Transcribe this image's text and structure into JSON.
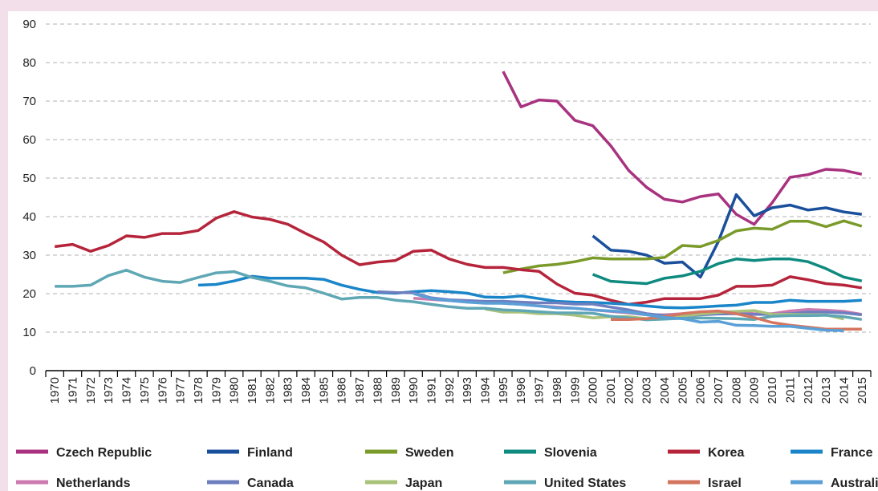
{
  "chart_data": {
    "type": "line",
    "categories": [
      "1970",
      "1971",
      "1972",
      "1973",
      "1974",
      "1975",
      "1976",
      "1977",
      "1978",
      "1979",
      "1980",
      "1981",
      "1982",
      "1983",
      "1984",
      "1985",
      "1986",
      "1987",
      "1988",
      "1989",
      "1990",
      "1991",
      "1992",
      "1993",
      "1994",
      "1995",
      "1996",
      "1997",
      "1998",
      "1999",
      "2000",
      "2001",
      "2002",
      "2003",
      "2004",
      "2005",
      "2006",
      "2007",
      "2008",
      "2009",
      "2010",
      "2011",
      "2012",
      "2013",
      "2014",
      "2015"
    ],
    "ylim": [
      0,
      90
    ],
    "yticks": [
      0,
      10,
      20,
      30,
      40,
      50,
      60,
      70,
      80,
      90
    ],
    "grid": true,
    "series": [
      {
        "name": "Czech Republic",
        "color": "#a8327f",
        "values": [
          null,
          null,
          null,
          null,
          null,
          null,
          null,
          null,
          null,
          null,
          null,
          null,
          null,
          null,
          null,
          null,
          null,
          null,
          null,
          null,
          null,
          null,
          null,
          null,
          null,
          77.7,
          68.5,
          70.3,
          70,
          65,
          63.6,
          58.4,
          52,
          47.6,
          44.5,
          43.8,
          45.2,
          45.9,
          40.6,
          38,
          43.6,
          50.2,
          50.9,
          52.3,
          52,
          51
        ]
      },
      {
        "name": "Finland",
        "color": "#1a4f9c",
        "values": [
          null,
          null,
          null,
          null,
          null,
          null,
          null,
          null,
          null,
          null,
          null,
          null,
          null,
          null,
          null,
          null,
          null,
          null,
          null,
          null,
          null,
          null,
          null,
          null,
          null,
          null,
          null,
          null,
          null,
          null,
          35,
          31.3,
          31,
          30,
          27.9,
          28.2,
          24.3,
          33.5,
          45.7,
          40.2,
          42.3,
          43,
          41.7,
          42.3,
          41.2,
          40.6
        ]
      },
      {
        "name": "Sweden",
        "color": "#7a9a2a",
        "values": [
          null,
          null,
          null,
          null,
          null,
          null,
          null,
          null,
          null,
          null,
          null,
          null,
          null,
          null,
          null,
          null,
          null,
          null,
          null,
          null,
          null,
          null,
          null,
          null,
          null,
          25.4,
          26.4,
          27.2,
          27.6,
          28.3,
          29.3,
          29,
          29,
          29,
          29.4,
          32.5,
          32.2,
          33.8,
          36.3,
          37,
          36.7,
          38.8,
          38.8,
          37.4,
          38.9,
          37.5
        ]
      },
      {
        "name": "Slovenia",
        "color": "#0e8a7f",
        "values": [
          null,
          null,
          null,
          null,
          null,
          null,
          null,
          null,
          null,
          null,
          null,
          null,
          null,
          null,
          null,
          null,
          null,
          null,
          null,
          null,
          null,
          null,
          null,
          null,
          null,
          null,
          null,
          null,
          null,
          null,
          25,
          23.2,
          22.9,
          22.6,
          24,
          24.6,
          25.8,
          27.8,
          29,
          28.6,
          29,
          29,
          28.3,
          26.5,
          24.3,
          23.3
        ]
      },
      {
        "name": "Korea",
        "color": "#b5243a",
        "values": [
          32.2,
          32.8,
          31,
          32.5,
          35,
          34.6,
          35.6,
          35.6,
          36.4,
          39.6,
          41.3,
          39.9,
          39.3,
          38,
          35.6,
          33.4,
          30,
          27.5,
          28.2,
          28.6,
          31,
          31.3,
          29,
          27.6,
          26.8,
          26.8,
          26.2,
          25.8,
          22.5,
          20.1,
          19.6,
          18.3,
          17.2,
          17.8,
          18.7,
          18.7,
          18.7,
          19.6,
          21.9,
          21.9,
          22.2,
          24.4,
          23.6,
          22.6,
          22.2,
          21.5
        ]
      },
      {
        "name": "France",
        "color": "#1a85c8",
        "values": [
          null,
          null,
          null,
          null,
          null,
          null,
          null,
          null,
          22.2,
          22.4,
          23.3,
          24.5,
          24,
          24,
          24,
          23.7,
          22.2,
          21.1,
          20.3,
          20.1,
          20.5,
          20.8,
          20.5,
          20.1,
          19.1,
          19,
          19.4,
          18.7,
          18,
          17.8,
          17.7,
          17.5,
          17.2,
          16.8,
          16.4,
          16.3,
          16.5,
          16.8,
          17,
          17.7,
          17.7,
          18.3,
          18,
          18,
          18,
          18.3
        ]
      },
      {
        "name": "Netherlands",
        "color": "#cc7ab0",
        "values": [
          null,
          null,
          null,
          null,
          null,
          null,
          null,
          null,
          null,
          null,
          null,
          null,
          null,
          null,
          null,
          null,
          null,
          null,
          null,
          null,
          18.8,
          18.5,
          18.2,
          18,
          17.8,
          17.5,
          17.2,
          16.8,
          16.5,
          16.2,
          15.8,
          15.4,
          15,
          14.5,
          14.5,
          14.8,
          15.2,
          15.3,
          15.3,
          14.8,
          14.8,
          15.5,
          15.9,
          15.7,
          15.4,
          14.6
        ]
      },
      {
        "name": "Canada",
        "color": "#6e7fc0",
        "values": [
          null,
          null,
          null,
          null,
          null,
          null,
          null,
          null,
          null,
          null,
          null,
          null,
          null,
          null,
          null,
          null,
          null,
          null,
          20.5,
          20.3,
          20.2,
          18.9,
          18.4,
          18.2,
          18,
          18,
          17.8,
          17.6,
          17.6,
          17.3,
          17.3,
          16.5,
          15.8,
          14.8,
          14.3,
          14.2,
          14.5,
          14.7,
          14.8,
          14.6,
          14.6,
          14.8,
          15.2,
          15.2,
          15,
          14.5
        ]
      },
      {
        "name": "Japan",
        "color": "#a9c27a",
        "values": [
          null,
          null,
          null,
          null,
          null,
          null,
          null,
          null,
          null,
          null,
          null,
          null,
          null,
          null,
          null,
          null,
          null,
          null,
          null,
          null,
          null,
          null,
          null,
          null,
          16,
          15.2,
          15.2,
          14.8,
          14.8,
          14.4,
          13.7,
          14,
          14,
          13.5,
          14,
          14.2,
          14.7,
          15.1,
          15.4,
          15.6,
          14.6,
          14.6,
          14.5,
          14.5,
          13.4,
          null
        ]
      },
      {
        "name": "United States",
        "color": "#5fa7b4",
        "values": [
          21.9,
          21.9,
          22.2,
          24.7,
          26.1,
          24.3,
          23.2,
          22.9,
          24.2,
          25.4,
          25.7,
          24.2,
          23.2,
          22,
          21.5,
          20.1,
          18.6,
          19,
          19,
          18.3,
          17.9,
          17.2,
          16.6,
          16.2,
          16.2,
          15.8,
          15.6,
          15.3,
          15,
          15,
          14.9,
          14.1,
          13.7,
          13.2,
          13.4,
          13.6,
          13.7,
          13.6,
          13.5,
          13.3,
          14.1,
          14.3,
          14.3,
          14.4,
          14,
          13.3
        ]
      },
      {
        "name": "Israel",
        "color": "#d4765f",
        "values": [
          null,
          null,
          null,
          null,
          null,
          null,
          null,
          null,
          null,
          null,
          null,
          null,
          null,
          null,
          null,
          null,
          null,
          null,
          null,
          null,
          null,
          null,
          null,
          null,
          null,
          null,
          null,
          null,
          null,
          null,
          null,
          13.3,
          13.3,
          13.5,
          14,
          14.8,
          15.3,
          15.5,
          14.8,
          13.8,
          12.5,
          11.8,
          11.3,
          10.8,
          10.8,
          10.8
        ]
      },
      {
        "name": "Australia",
        "color": "#5a9fd6",
        "values": [
          null,
          null,
          null,
          null,
          null,
          null,
          null,
          null,
          null,
          null,
          null,
          null,
          null,
          null,
          null,
          null,
          null,
          null,
          null,
          null,
          20,
          18.7,
          18.2,
          17.8,
          17.5,
          17.5,
          17.2,
          16.8,
          16.3,
          16.2,
          15.8,
          15.5,
          15.2,
          14.5,
          13.8,
          13.5,
          12.6,
          12.8,
          11.8,
          11.7,
          11.5,
          11.5,
          11,
          10.5,
          10.4,
          null
        ]
      }
    ]
  }
}
